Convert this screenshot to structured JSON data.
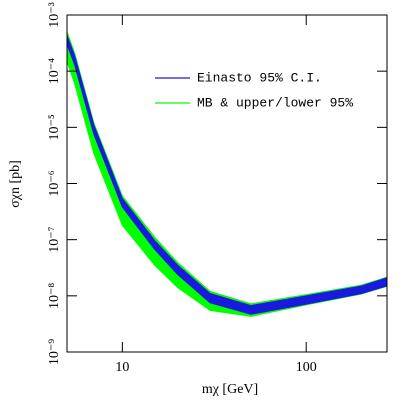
{
  "chart_data": {
    "type": "band",
    "xlabel": "mχ [GeV]",
    "ylabel": "σχn [pb]",
    "xlog": true,
    "ylog": true,
    "xlim": [
      5,
      275
    ],
    "ylim": [
      1e-09,
      0.001
    ],
    "xticks": [
      10,
      100
    ],
    "yticks": [
      {
        "value": 1e-09,
        "label": "10⁻⁹"
      },
      {
        "value": 1e-08,
        "label": "10⁻⁸"
      },
      {
        "value": 1e-07,
        "label": "10⁻⁷"
      },
      {
        "value": 1e-06,
        "label": "10⁻⁶"
      },
      {
        "value": 1e-05,
        "label": "10⁻⁵"
      },
      {
        "value": 0.0001,
        "label": "10⁻⁴"
      },
      {
        "value": 0.001,
        "label": "10⁻³"
      }
    ],
    "x": [
      5,
      5.5,
      7,
      10,
      15,
      20,
      30,
      50,
      100,
      200,
      275
    ],
    "series": [
      {
        "name": "MB & upper/lower 95%",
        "color": "#00ff00",
        "upper": [
          0.0005,
          0.00021,
          1.2e-05,
          6e-07,
          1.1e-07,
          3.9e-08,
          1.2e-08,
          7.2e-09,
          1.05e-08,
          1.55e-08,
          2.15e-08
        ],
        "lower": [
          0.00015,
          6e-05,
          3.4e-06,
          1.8e-07,
          3.5e-08,
          1.4e-08,
          5.5e-09,
          4.3e-09,
          6.9e-09,
          1.08e-08,
          1.48e-08
        ]
      },
      {
        "name": "Einasto 95% C.I.",
        "color": "#1a1adf",
        "upper": [
          0.00043,
          0.00019,
          1.1e-05,
          5.4e-07,
          9.6e-08,
          3.5e-08,
          1.1e-08,
          6.7e-09,
          1e-08,
          1.5e-08,
          2.1e-08
        ],
        "lower": [
          0.0003,
          0.00013,
          7.5e-06,
          3.8e-07,
          6.7e-08,
          2.4e-08,
          7.5e-09,
          4.7e-09,
          7.1e-09,
          1.1e-08,
          1.5e-08
        ]
      }
    ],
    "legend_order": [
      1,
      0
    ]
  }
}
